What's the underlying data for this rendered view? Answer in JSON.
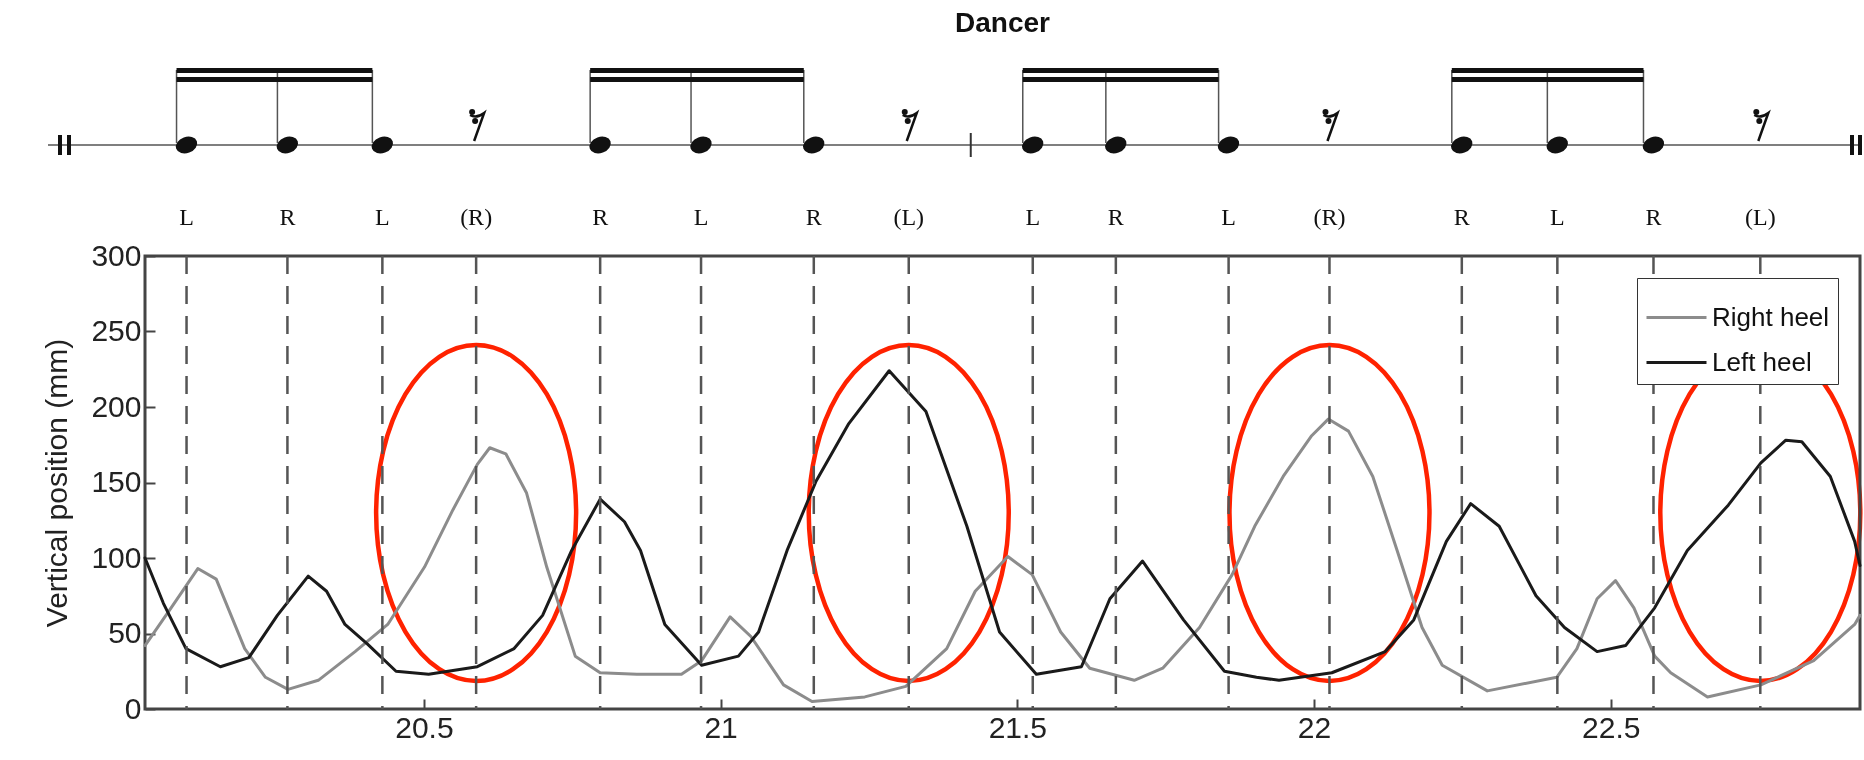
{
  "chart_data": {
    "type": "line",
    "title": "Dancer",
    "ylabel": "Vertical position (mm)",
    "xlim": [
      20.03,
      22.92
    ],
    "ylim": [
      0,
      300
    ],
    "xticks": [
      20.5,
      21,
      21.5,
      22,
      22.5
    ],
    "yticks": [
      0,
      50,
      100,
      150,
      200,
      250,
      300
    ],
    "grid": false,
    "legend": "top right",
    "line_style": "solid",
    "series": [
      {
        "name": "Right heel",
        "color": "#8c8c8c",
        "x": [
          20.03,
          20.074,
          20.119,
          20.15,
          20.198,
          20.233,
          20.271,
          20.322,
          20.384,
          20.439,
          20.501,
          20.549,
          20.59,
          20.611,
          20.638,
          20.673,
          20.707,
          20.755,
          20.797,
          20.859,
          20.934,
          20.968,
          21.016,
          21.051,
          21.106,
          21.154,
          21.243,
          21.312,
          21.381,
          21.429,
          21.484,
          21.525,
          21.573,
          21.622,
          21.697,
          21.745,
          21.807,
          21.862,
          21.9,
          21.948,
          21.996,
          22.024,
          22.058,
          22.099,
          22.14,
          22.182,
          22.216,
          22.292,
          22.409,
          22.443,
          22.477,
          22.508,
          22.539,
          22.574,
          22.601,
          22.663,
          22.753,
          22.842,
          22.911,
          22.92
        ],
        "values": [
          42,
          67,
          93,
          86,
          40,
          21,
          13,
          19,
          38,
          56,
          94,
          132,
          162,
          173,
          169,
          143,
          94,
          35,
          24,
          23,
          23,
          32,
          61,
          48,
          16,
          5,
          8,
          15,
          40,
          78,
          101,
          89,
          51,
          27,
          19,
          27,
          54,
          89,
          121,
          154,
          181,
          192,
          184,
          154,
          105,
          54,
          29,
          12,
          21,
          40,
          73,
          85,
          67,
          35,
          24,
          8,
          16,
          32,
          56,
          62
        ]
      },
      {
        "name": "Left heel",
        "color": "#1a1a1a",
        "x": [
          20.03,
          20.061,
          20.099,
          20.157,
          20.205,
          20.253,
          20.305,
          20.336,
          20.367,
          20.405,
          20.453,
          20.508,
          20.59,
          20.652,
          20.7,
          20.749,
          20.797,
          20.838,
          20.865,
          20.906,
          20.968,
          21.03,
          21.064,
          21.112,
          21.161,
          21.216,
          21.284,
          21.346,
          21.415,
          21.47,
          21.532,
          21.608,
          21.656,
          21.711,
          21.78,
          21.849,
          21.903,
          21.941,
          22.03,
          22.12,
          22.168,
          22.223,
          22.264,
          22.312,
          22.374,
          22.422,
          22.477,
          22.525,
          22.574,
          22.629,
          22.698,
          22.753,
          22.795,
          22.822,
          22.87,
          22.911,
          22.92
        ],
        "values": [
          100,
          70,
          40,
          28,
          34,
          62,
          88,
          78,
          56,
          43,
          25,
          23,
          28,
          40,
          62,
          105,
          139,
          124,
          105,
          56,
          29,
          35,
          51,
          105,
          151,
          189,
          224,
          197,
          121,
          51,
          23,
          28,
          73,
          98,
          59,
          25,
          21,
          19,
          24,
          38,
          59,
          111,
          136,
          121,
          75,
          54,
          38,
          42,
          67,
          105,
          135,
          163,
          178,
          177,
          154,
          111,
          95
        ]
      }
    ],
    "ref_lines": [
      {
        "axis": "x",
        "value": 20.1,
        "label": "L",
        "line_style": "dashed",
        "color": "#555555"
      },
      {
        "axis": "x",
        "value": 20.27,
        "label": "R",
        "line_style": "dashed",
        "color": "#555555"
      },
      {
        "axis": "x",
        "value": 20.43,
        "label": "L",
        "line_style": "dashed",
        "color": "#555555"
      },
      {
        "axis": "x",
        "value": 20.588,
        "label": "(R)",
        "line_style": "dashed",
        "color": "#555555"
      },
      {
        "axis": "x",
        "value": 20.797,
        "label": "R",
        "line_style": "dashed",
        "color": "#555555"
      },
      {
        "axis": "x",
        "value": 20.967,
        "label": "L",
        "line_style": "dashed",
        "color": "#555555"
      },
      {
        "axis": "x",
        "value": 21.157,
        "label": "R",
        "line_style": "dashed",
        "color": "#555555"
      },
      {
        "axis": "x",
        "value": 21.317,
        "label": "(L)",
        "line_style": "dashed",
        "color": "#555555"
      },
      {
        "axis": "x",
        "value": 21.526,
        "label": "L",
        "line_style": "dashed",
        "color": "#555555"
      },
      {
        "axis": "x",
        "value": 21.666,
        "label": "R",
        "line_style": "dashed",
        "color": "#555555"
      },
      {
        "axis": "x",
        "value": 21.856,
        "label": "L",
        "line_style": "dashed",
        "color": "#555555"
      },
      {
        "axis": "x",
        "value": 22.026,
        "label": "(R)",
        "line_style": "dashed",
        "color": "#555555"
      },
      {
        "axis": "x",
        "value": 22.249,
        "label": "R",
        "line_style": "dashed",
        "color": "#555555"
      },
      {
        "axis": "x",
        "value": 22.41,
        "label": "L",
        "line_style": "dashed",
        "color": "#555555"
      },
      {
        "axis": "x",
        "value": 22.572,
        "label": "R",
        "line_style": "dashed",
        "color": "#555555"
      },
      {
        "axis": "x",
        "value": 22.752,
        "label": "(L)",
        "line_style": "dashed",
        "color": "#555555"
      }
    ]
  }
}
